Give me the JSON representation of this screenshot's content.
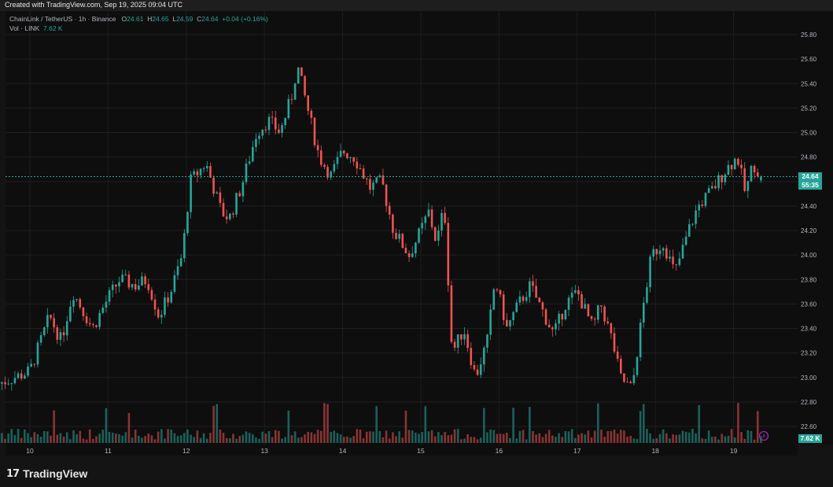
{
  "header": {
    "created_text": "Created with TradingView.com, Sep 19, 2025 09:04 UTC"
  },
  "legend": {
    "symbol": "ChainLink / TetherUS · 1h · Binance",
    "o_label": "O",
    "o_value": "24.61",
    "h_label": "H",
    "h_value": "24.65",
    "l_label": "L",
    "l_value": "24.59",
    "c_label": "C",
    "c_value": "24.64",
    "change": "+0.04 (+0.16%)",
    "vol_label": "Vol · LINK",
    "vol_value": "7.62 K"
  },
  "price_tag": {
    "price": "24.64",
    "countdown": "55:35"
  },
  "vol_tag": "7.62 K",
  "footer": {
    "brand": "TradingView"
  },
  "colors": {
    "up": "#26a69a",
    "down": "#ef5350",
    "background": "#0e0e0e",
    "grid": "#1e1e1e"
  },
  "chart_data": {
    "type": "candlestick",
    "y_ticks": [
      "25.80",
      "25.60",
      "25.40",
      "25.20",
      "25.00",
      "24.80",
      "24.60",
      "24.40",
      "24.20",
      "24.00",
      "23.80",
      "23.60",
      "23.40",
      "23.20",
      "23.00",
      "22.80",
      "22.60"
    ],
    "x_ticks": [
      "10",
      "11",
      "12",
      "13",
      "14",
      "15",
      "16",
      "17",
      "18",
      "19"
    ],
    "ylim": [
      22.45,
      25.9
    ],
    "last_price": 24.64,
    "close_path": [
      {
        "d": 9.6,
        "p": 22.95
      },
      {
        "d": 10.0,
        "p": 23.05
      },
      {
        "d": 10.25,
        "p": 23.5
      },
      {
        "d": 10.4,
        "p": 23.3
      },
      {
        "d": 10.55,
        "p": 23.7
      },
      {
        "d": 10.8,
        "p": 23.4
      },
      {
        "d": 11.0,
        "p": 23.65
      },
      {
        "d": 11.15,
        "p": 23.8
      },
      {
        "d": 11.35,
        "p": 23.75
      },
      {
        "d": 11.5,
        "p": 23.8
      },
      {
        "d": 11.65,
        "p": 23.5
      },
      {
        "d": 11.8,
        "p": 23.7
      },
      {
        "d": 11.95,
        "p": 24.0
      },
      {
        "d": 12.05,
        "p": 24.6
      },
      {
        "d": 12.25,
        "p": 24.75
      },
      {
        "d": 12.45,
        "p": 24.35
      },
      {
        "d": 12.55,
        "p": 24.3
      },
      {
        "d": 12.7,
        "p": 24.55
      },
      {
        "d": 12.9,
        "p": 25.0
      },
      {
        "d": 13.05,
        "p": 25.1
      },
      {
        "d": 13.2,
        "p": 25.0
      },
      {
        "d": 13.35,
        "p": 25.3
      },
      {
        "d": 13.42,
        "p": 25.55
      },
      {
        "d": 13.55,
        "p": 25.2
      },
      {
        "d": 13.7,
        "p": 24.8
      },
      {
        "d": 13.85,
        "p": 24.65
      },
      {
        "d": 14.0,
        "p": 24.85
      },
      {
        "d": 14.15,
        "p": 24.8
      },
      {
        "d": 14.35,
        "p": 24.55
      },
      {
        "d": 14.5,
        "p": 24.6
      },
      {
        "d": 14.65,
        "p": 24.2
      },
      {
        "d": 14.85,
        "p": 24.0
      },
      {
        "d": 15.0,
        "p": 24.2
      },
      {
        "d": 15.1,
        "p": 24.35
      },
      {
        "d": 15.2,
        "p": 24.1
      },
      {
        "d": 15.3,
        "p": 24.4
      },
      {
        "d": 15.4,
        "p": 23.2
      },
      {
        "d": 15.55,
        "p": 23.4
      },
      {
        "d": 15.7,
        "p": 23.0
      },
      {
        "d": 15.85,
        "p": 23.3
      },
      {
        "d": 15.95,
        "p": 23.8
      },
      {
        "d": 16.1,
        "p": 23.4
      },
      {
        "d": 16.25,
        "p": 23.6
      },
      {
        "d": 16.4,
        "p": 23.75
      },
      {
        "d": 16.55,
        "p": 23.55
      },
      {
        "d": 16.7,
        "p": 23.35
      },
      {
        "d": 16.85,
        "p": 23.6
      },
      {
        "d": 17.0,
        "p": 23.7
      },
      {
        "d": 17.2,
        "p": 23.4
      },
      {
        "d": 17.3,
        "p": 23.6
      },
      {
        "d": 17.45,
        "p": 23.3
      },
      {
        "d": 17.55,
        "p": 23.0
      },
      {
        "d": 17.7,
        "p": 22.9
      },
      {
        "d": 17.85,
        "p": 23.6
      },
      {
        "d": 17.95,
        "p": 24.0
      },
      {
        "d": 18.1,
        "p": 24.1
      },
      {
        "d": 18.25,
        "p": 23.85
      },
      {
        "d": 18.45,
        "p": 24.25
      },
      {
        "d": 18.55,
        "p": 24.4
      },
      {
        "d": 18.75,
        "p": 24.55
      },
      {
        "d": 18.9,
        "p": 24.7
      },
      {
        "d": 19.05,
        "p": 24.8
      },
      {
        "d": 19.15,
        "p": 24.5
      },
      {
        "d": 19.25,
        "p": 24.75
      },
      {
        "d": 19.35,
        "p": 24.64
      }
    ]
  }
}
